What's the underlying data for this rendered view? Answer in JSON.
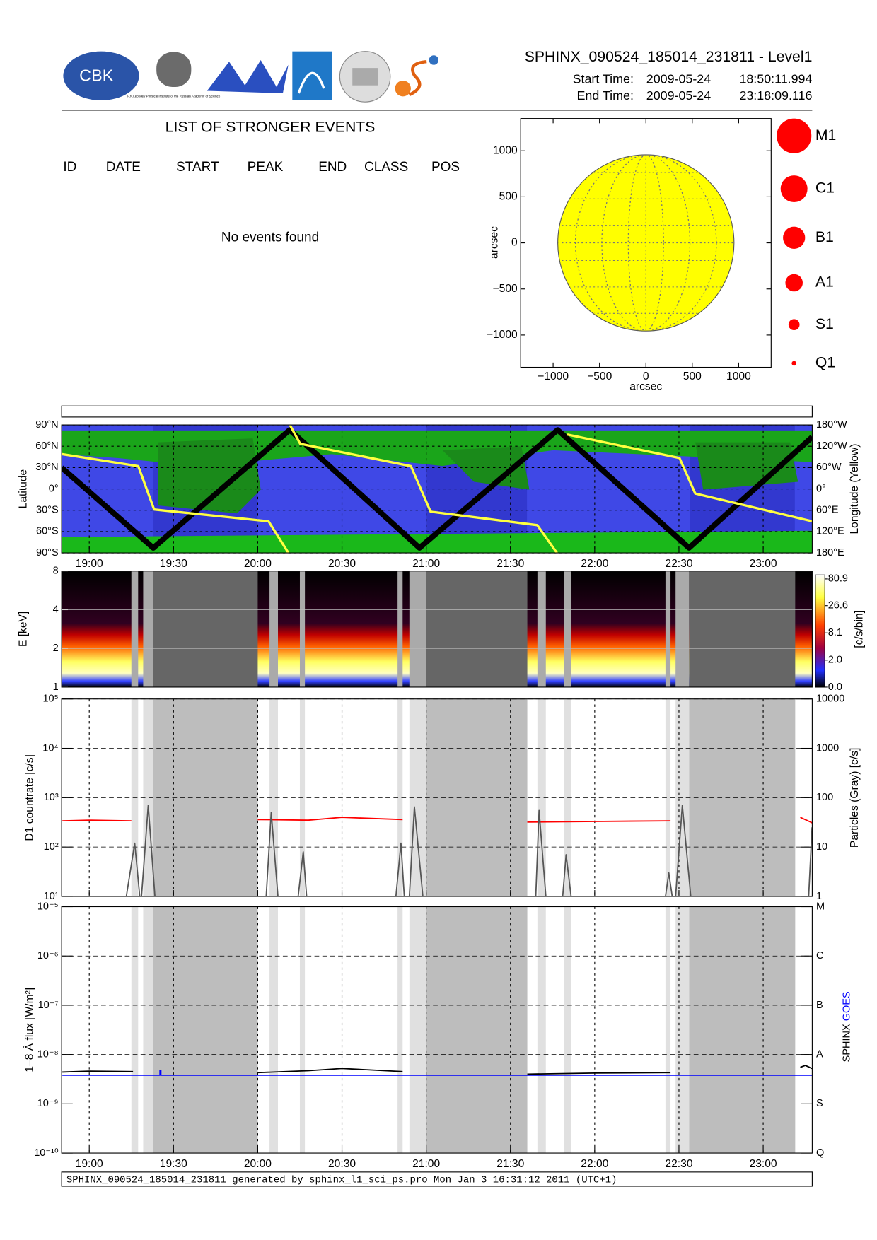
{
  "header": {
    "logo_text": "CBK",
    "institute_text": "P.N.Lebedev Physical Institute of the Russian Academy of Science",
    "title": "SPHINX_090524_185014_231811 - Level1",
    "start_label": "Start Time:",
    "start_date": "2009-05-24",
    "start_time": "18:50:11.994",
    "end_label": "End Time:",
    "end_date": "2009-05-24",
    "end_time": "23:18:09.116"
  },
  "events_table": {
    "title": "LIST OF STRONGER EVENTS",
    "columns": [
      "ID",
      "DATE",
      "START",
      "PEAK",
      "END",
      "CLASS",
      "POS"
    ],
    "message": "No events found"
  },
  "chart_data": [
    {
      "type": "disk",
      "xlabel": "arcsec",
      "ylabel": "arcsec",
      "xlim": [
        -1350,
        1350
      ],
      "ylim": [
        -1350,
        1350
      ],
      "xticks": [
        {
          "value": -1000,
          "label": "−1000"
        },
        {
          "value": -500,
          "label": "−500"
        },
        0,
        500,
        1000
      ],
      "yticks": [
        {
          "value": -1000,
          "label": "−1000"
        },
        {
          "value": -500,
          "label": "−500"
        },
        0,
        500,
        1000
      ],
      "disk_radius": 950,
      "disk_color": "#ffff00",
      "legend_classes": [
        "M1",
        "C1",
        "B1",
        "A1",
        "S1",
        "Q1"
      ],
      "legend_color": "#ff0000"
    },
    {
      "type": "orbit",
      "ylabel": "Latitude",
      "y2label": "Longitude (Yellow)",
      "xlim": [
        18.836,
        23.291
      ],
      "xticks": [
        {
          "value": 19,
          "label": "19:00"
        },
        {
          "value": 19.5,
          "label": "19:30"
        },
        {
          "value": 20,
          "label": "20:00"
        },
        {
          "value": 20.5,
          "label": "20:30"
        },
        {
          "value": 21,
          "label": "21:00"
        },
        {
          "value": 21.5,
          "label": "21:30"
        },
        {
          "value": 22,
          "label": "22:00"
        },
        {
          "value": 22.5,
          "label": "22:30"
        },
        {
          "value": 23,
          "label": "23:00"
        }
      ],
      "ylim": [
        -90,
        90
      ],
      "yticks": [
        {
          "value": -90,
          "label": "90°S"
        },
        {
          "value": -60,
          "label": "60°S"
        },
        {
          "value": -30,
          "label": "30°S"
        },
        {
          "value": 0,
          "label": "0°"
        },
        {
          "value": 30,
          "label": "30°N"
        },
        {
          "value": 60,
          "label": "60°N"
        },
        {
          "value": 90,
          "label": "90°N"
        }
      ],
      "y2lim": [
        180,
        -180
      ],
      "y2ticks": [
        {
          "value": -180,
          "label": "180°W"
        },
        {
          "value": -120,
          "label": "120°W"
        },
        {
          "value": -60,
          "label": "60°W"
        },
        {
          "value": 0,
          "label": "0°"
        },
        {
          "value": 60,
          "label": "60°E"
        },
        {
          "value": 120,
          "label": "120°E"
        },
        {
          "value": 180,
          "label": "180°E"
        }
      ],
      "grid": true,
      "series": [
        {
          "color": "#000000",
          "x": [
            18.836,
            19.38,
            20.19,
            20.96,
            21.78,
            22.56,
            23.291
          ],
          "values": [
            30,
            -83,
            83,
            -83,
            83,
            -83,
            73
          ]
        },
        {
          "color": "#ffff40",
          "axis": "y2",
          "x": [
            18.836,
            19.291,
            19.385,
            20.064,
            20.182,
            20.191,
            20.191,
            20.252,
            20.909,
            21.026,
            21.659,
            21.776,
            21.776,
            21.837,
            22.503,
            22.597,
            23.291
          ],
          "values": [
            -98,
            -64,
            58,
            91,
            180,
            null,
            -180,
            -127,
            -64,
            64,
            102,
            180,
            null,
            -153,
            -87,
            13,
            91
          ]
        }
      ]
    },
    {
      "type": "spectrogram",
      "ylabel": "E [keV]",
      "xlim": [
        18.836,
        23.291
      ],
      "ylim": [
        1,
        8
      ],
      "yticks": [
        1,
        2,
        4,
        8
      ],
      "log_y": true,
      "colorbar_label": "[c/s/bin]",
      "colorbar_ticks": [
        80.9,
        26.6,
        8.1,
        {
          "value": 2,
          "label": "2.0"
        },
        {
          "value": 0,
          "label": "0.0"
        }
      ]
    },
    {
      "type": "line",
      "log_y": true,
      "ylabel": "D1 countrate [c/s]",
      "y2label": "Particles (Gray) [c/s]",
      "xlim": [
        18.836,
        23.291
      ],
      "xticks": [
        19,
        19.5,
        20,
        20.5,
        21,
        21.5,
        22,
        22.5,
        23
      ],
      "ylim": [
        10,
        100000
      ],
      "yticks": [
        {
          "value": 10,
          "label": "10¹"
        },
        {
          "value": 100,
          "label": "10²"
        },
        {
          "value": 1000,
          "label": "10³"
        },
        {
          "value": 10000,
          "label": "10⁴"
        },
        {
          "value": 100000,
          "label": "10⁵"
        }
      ],
      "y2lim": [
        1,
        10000
      ],
      "y2ticks": [
        1,
        10,
        100,
        1000,
        10000
      ],
      "grid": true,
      "gaps_dark": [
        [
          19.38,
          20.0
        ],
        [
          21.0,
          21.6
        ],
        [
          22.56,
          23.19
        ]
      ],
      "gaps_light": [
        [
          19.25,
          19.29
        ],
        [
          19.32,
          19.38
        ],
        [
          20.07,
          20.12
        ],
        [
          20.25,
          20.28
        ],
        [
          20.83,
          20.86
        ],
        [
          20.9,
          21.0
        ],
        [
          21.66,
          21.71
        ],
        [
          21.82,
          21.86
        ],
        [
          22.42,
          22.45
        ],
        [
          22.48,
          22.56
        ]
      ],
      "series": [
        {
          "color": "#ff0000",
          "x": [
            18.84,
            19.0,
            19.25,
            19.26,
            20.0,
            20.3,
            20.5,
            20.86,
            20.87,
            21.6,
            22.0,
            22.45,
            22.46,
            23.22,
            23.3
          ],
          "values": [
            340,
            350,
            340,
            null,
            360,
            350,
            400,
            360,
            null,
            320,
            330,
            340,
            null,
            400,
            300
          ]
        },
        {
          "color": "#555555",
          "axis": "y2",
          "x": [
            19.22,
            19.27,
            19.3,
            19.31,
            19.35,
            19.39,
            20.05,
            20.08,
            20.12,
            20.24,
            20.27,
            20.29,
            20.82,
            20.85,
            20.87,
            20.9,
            20.93,
            20.98,
            21.65,
            21.67,
            21.71,
            21.81,
            21.83,
            21.86,
            22.42,
            22.44,
            22.46,
            22.48,
            22.52,
            22.57,
            23.27,
            23.29
          ],
          "values": [
            1,
            12,
            1,
            1,
            70,
            1,
            1,
            50,
            1,
            1,
            8,
            1,
            1,
            12,
            1,
            1,
            65,
            1,
            1,
            55,
            1,
            1,
            7,
            1,
            1,
            3,
            1,
            1,
            70,
            1,
            1,
            25
          ]
        }
      ]
    },
    {
      "type": "line",
      "log_y": true,
      "ylabel": "1–8 Å flux [W/m²]",
      "xlim": [
        18.836,
        23.291
      ],
      "xticks": [
        {
          "value": 19,
          "label": "19:00"
        },
        {
          "value": 19.5,
          "label": "19:30"
        },
        {
          "value": 20,
          "label": "20:00"
        },
        {
          "value": 20.5,
          "label": "20:30"
        },
        {
          "value": 21,
          "label": "21:00"
        },
        {
          "value": 21.5,
          "label": "21:30"
        },
        {
          "value": 22,
          "label": "22:00"
        },
        {
          "value": 22.5,
          "label": "22:30"
        },
        {
          "value": 23,
          "label": "23:00"
        }
      ],
      "ylim": [
        1e-10,
        1e-05
      ],
      "yticks": [
        {
          "value": 1e-10,
          "label": "10⁻¹⁰"
        },
        {
          "value": 1e-09,
          "label": "10⁻⁹"
        },
        {
          "value": 1e-08,
          "label": "10⁻⁸"
        },
        {
          "value": 1e-07,
          "label": "10⁻⁷"
        },
        {
          "value": 1e-06,
          "label": "10⁻⁶"
        },
        {
          "value": 1e-05,
          "label": "10⁻⁵"
        }
      ],
      "y2ticks": [
        {
          "value": 1e-10,
          "label": "Q"
        },
        {
          "value": 1e-09,
          "label": "S"
        },
        {
          "value": 1e-08,
          "label": "A"
        },
        {
          "value": 1e-07,
          "label": "B"
        },
        {
          "value": 1e-06,
          "label": "C"
        },
        {
          "value": 1e-05,
          "label": "M"
        }
      ],
      "grid": true,
      "series": [
        {
          "name": "SPHINX",
          "color": "#000000",
          "x": [
            18.84,
            19.0,
            19.26,
            19.27,
            20.0,
            20.3,
            20.5,
            20.86,
            20.87,
            21.6,
            22.0,
            22.45,
            22.46,
            23.22,
            23.25,
            23.29
          ],
          "values": [
            4.4e-09,
            4.6e-09,
            4.5e-09,
            null,
            4.3e-09,
            4.7e-09,
            5.2e-09,
            4.5e-09,
            null,
            4e-09,
            4.2e-09,
            4.3e-09,
            null,
            5.5e-09,
            6e-09,
            5.2e-09
          ]
        },
        {
          "name": "GOES",
          "color": "#0000ff",
          "x": [
            18.84,
            19.42,
            19.42,
            19.425,
            19.425,
            23.29
          ],
          "values": [
            3.8e-09,
            3.8e-09,
            4.8e-09,
            4.8e-09,
            3.8e-09,
            3.8e-09
          ]
        }
      ]
    }
  ],
  "footer": "SPHINX_090524_185014_231811 generated by sphinx_l1_sci_ps.pro Mon Jan  3 16:31:12 2011 (UTC+1)"
}
